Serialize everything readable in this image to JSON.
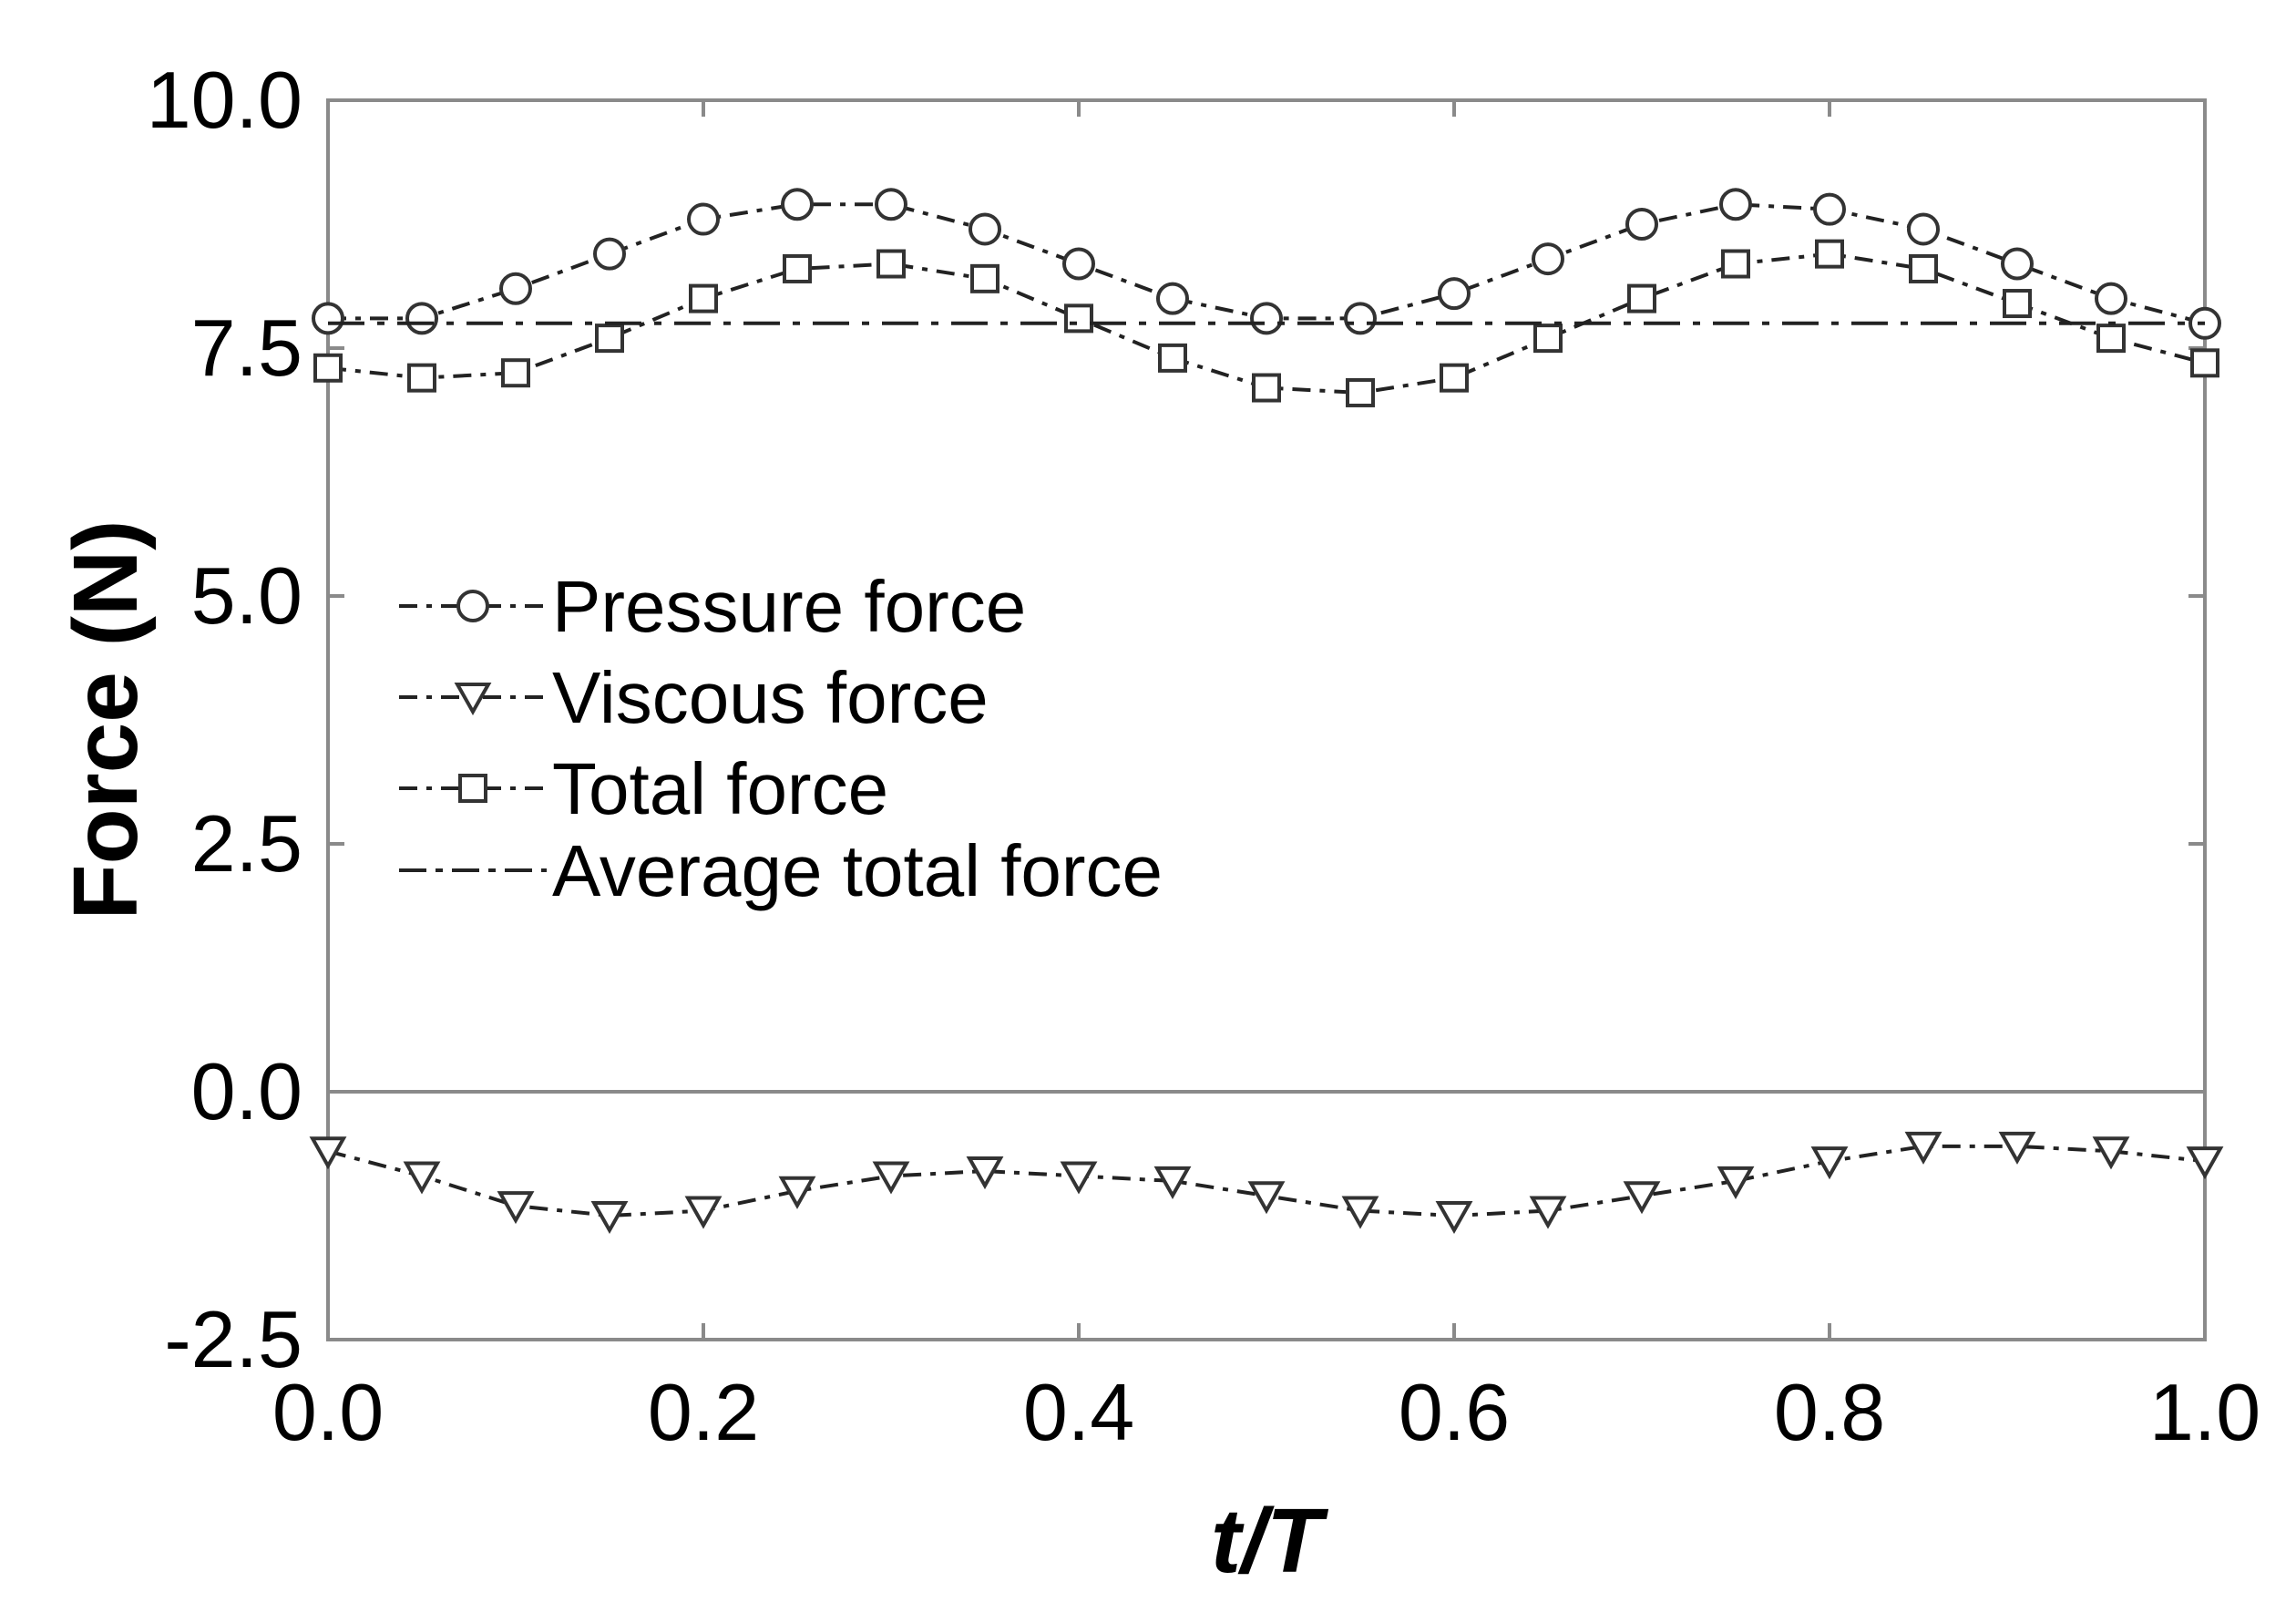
{
  "chart_data": {
    "type": "line",
    "xlabel": "t/T",
    "ylabel": "Force (N)",
    "xlim": [
      0.0,
      1.0
    ],
    "ylim": [
      -2.5,
      10.0
    ],
    "xticks": [
      "0.0",
      "0.2",
      "0.4",
      "0.6",
      "0.8",
      "1.0"
    ],
    "yticks": [
      "-2.5",
      "0.0",
      "2.5",
      "5.0",
      "7.5",
      "10.0"
    ],
    "grid": false,
    "legend_position": "left",
    "x": [
      0.0,
      0.05,
      0.1,
      0.15,
      0.2,
      0.25,
      0.3,
      0.35,
      0.4,
      0.45,
      0.5,
      0.55,
      0.6,
      0.65,
      0.7,
      0.75,
      0.8,
      0.85,
      0.9,
      0.95,
      1.0
    ],
    "series": [
      {
        "name": "Pressure force",
        "marker": "circle",
        "color": "#222222",
        "values": [
          7.8,
          7.8,
          8.1,
          8.45,
          8.8,
          8.95,
          8.95,
          8.7,
          8.35,
          8.0,
          7.8,
          7.8,
          8.05,
          8.4,
          8.75,
          8.95,
          8.9,
          8.7,
          8.35,
          8.0,
          7.75
        ]
      },
      {
        "name": "Viscous force",
        "marker": "triangle-down",
        "color": "#222222",
        "values": [
          -0.6,
          -0.85,
          -1.15,
          -1.25,
          -1.2,
          -1.0,
          -0.85,
          -0.8,
          -0.85,
          -0.9,
          -1.05,
          -1.2,
          -1.25,
          -1.2,
          -1.05,
          -0.9,
          -0.7,
          -0.55,
          -0.55,
          -0.6,
          -0.7
        ]
      },
      {
        "name": "Total force",
        "marker": "square",
        "color": "#222222",
        "values": [
          7.3,
          7.2,
          7.25,
          7.6,
          8.0,
          8.3,
          8.35,
          8.2,
          7.8,
          7.4,
          7.1,
          7.05,
          7.2,
          7.6,
          8.0,
          8.35,
          8.45,
          8.3,
          7.95,
          7.6,
          7.35
        ]
      },
      {
        "name": "Average total force",
        "marker": "none",
        "color": "#222222",
        "values": [
          7.75,
          7.75,
          7.75,
          7.75,
          7.75,
          7.75,
          7.75,
          7.75,
          7.75,
          7.75,
          7.75,
          7.75,
          7.75,
          7.75,
          7.75,
          7.75,
          7.75,
          7.75,
          7.75,
          7.75,
          7.75
        ]
      }
    ]
  }
}
